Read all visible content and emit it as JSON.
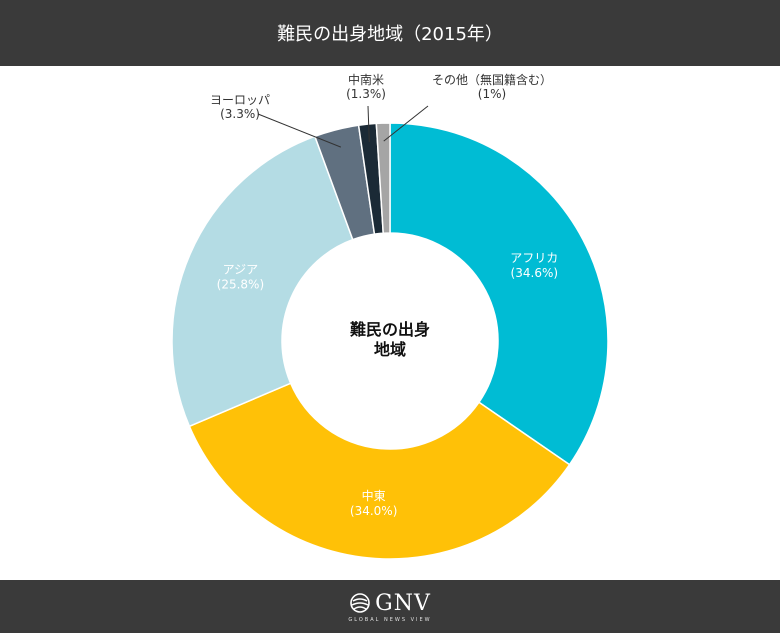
{
  "header": {
    "title": "難民の出身地域（2015年）"
  },
  "chart_data": {
    "type": "pie",
    "donut": true,
    "center_label": [
      "難民の出身",
      "地域"
    ],
    "start_angle": "12 o'clock, clockwise",
    "slices": [
      {
        "label": "アフリカ",
        "value": 34.6,
        "value_label": "(34.6%)",
        "color": "#00bcd4",
        "label_position": "inside"
      },
      {
        "label": "中東",
        "value": 34.0,
        "value_label": "(34.0%)",
        "color": "#ffc107",
        "label_position": "inside"
      },
      {
        "label": "アジア",
        "value": 25.8,
        "value_label": "(25.8%)",
        "color": "#b4dce4",
        "label_position": "inside"
      },
      {
        "label": "ヨーロッパ",
        "value": 3.3,
        "value_label": "(3.3%)",
        "color": "#607080",
        "label_position": "outside"
      },
      {
        "label": "中南米",
        "value": 1.3,
        "value_label": "(1.3%)",
        "color": "#1b2a36",
        "label_position": "outside"
      },
      {
        "label": "その他（無国籍含む）",
        "value": 1.0,
        "value_label": "(1%)",
        "color": "#a5a5a5",
        "label_position": "outside"
      }
    ]
  },
  "footer": {
    "logo_text": "GNV",
    "logo_subtext": "GLOBAL NEWS VIEW"
  }
}
